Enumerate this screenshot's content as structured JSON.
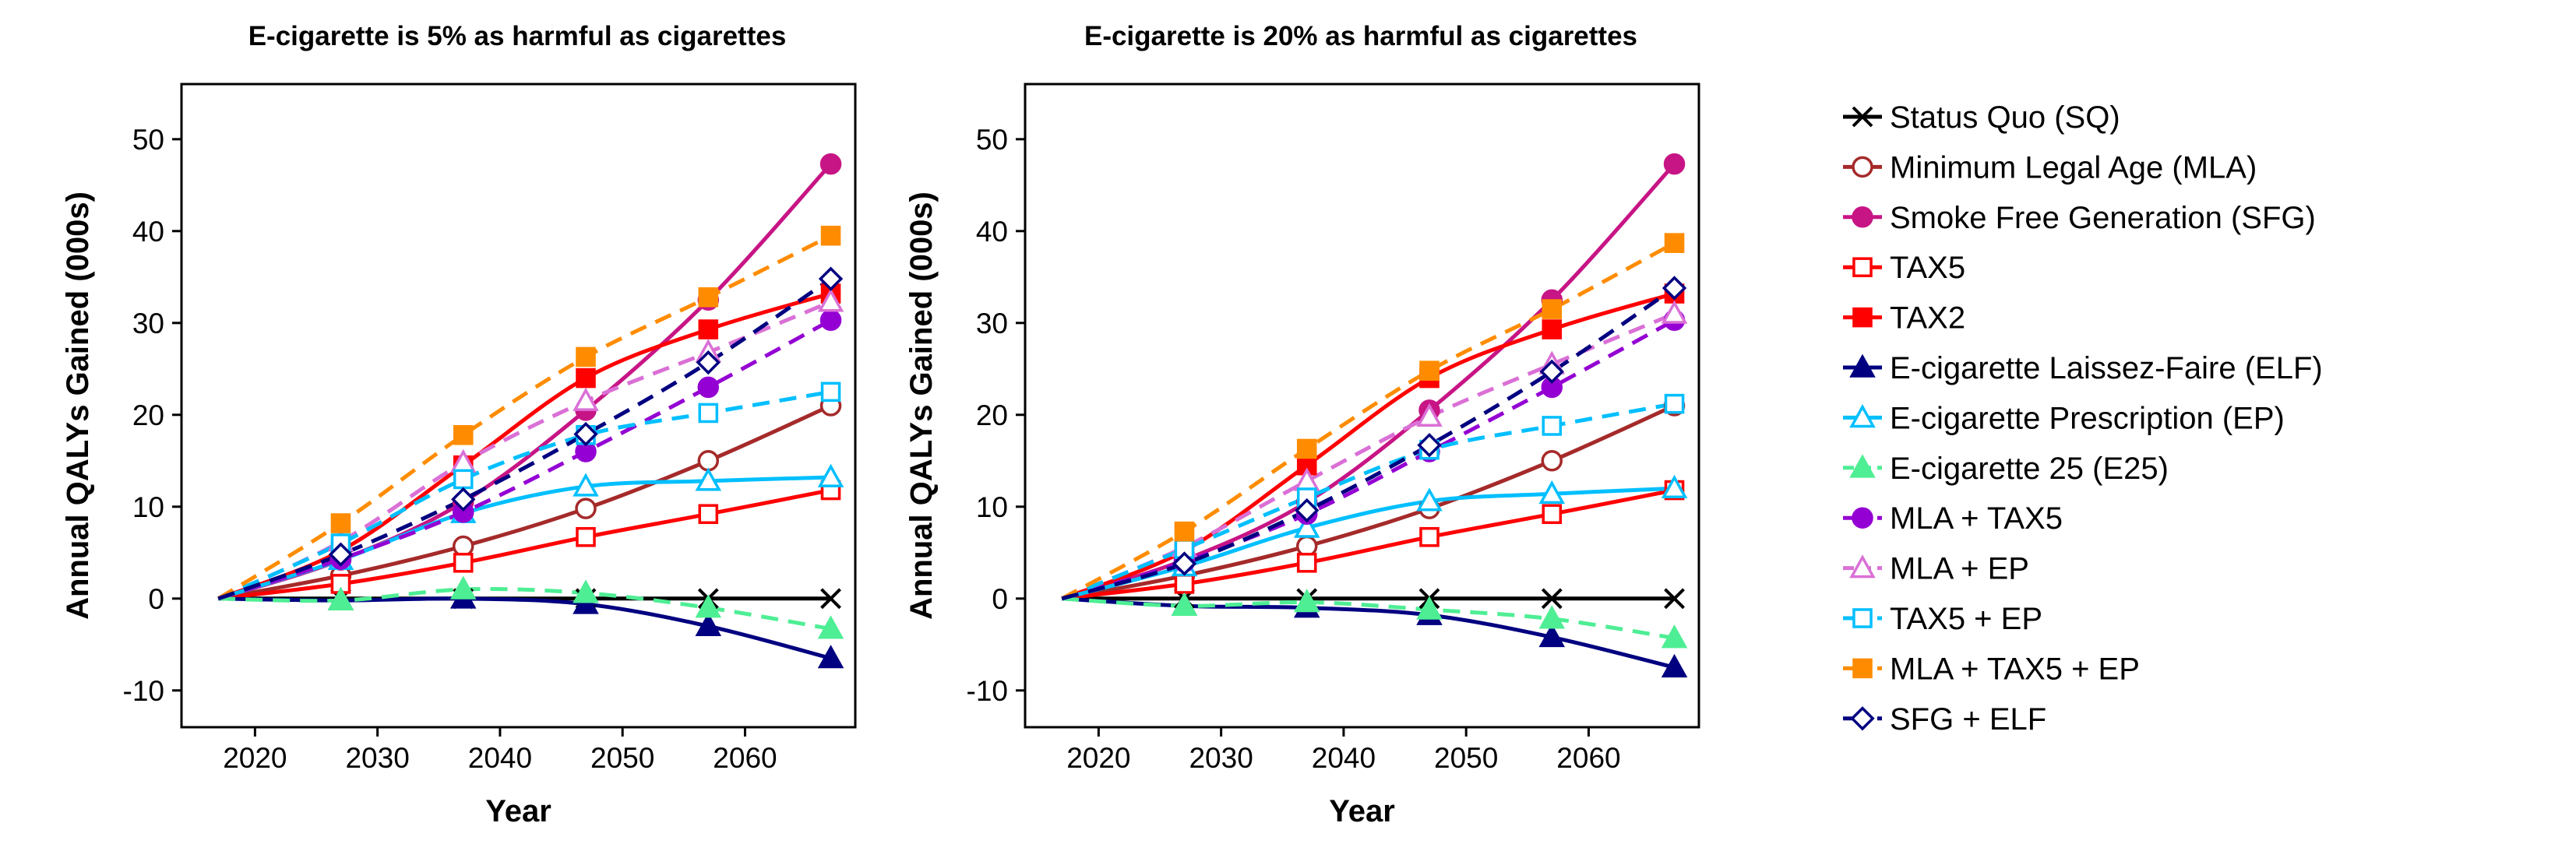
{
  "chart_data": [
    {
      "type": "line",
      "title": "E-cigarette is 5% as harmful as cigarettes",
      "xlabel": "Year",
      "ylabel": "Annual QALYs Gained (000s)",
      "xlim": [
        2014,
        2069
      ],
      "ylim": [
        -14,
        56
      ],
      "xticks": [
        2020,
        2030,
        2040,
        2050,
        2060
      ],
      "yticks": [
        -10,
        0,
        10,
        20,
        30,
        40,
        50
      ],
      "x": [
        2017,
        2027,
        2037,
        2047,
        2057,
        2067
      ],
      "series": [
        {
          "name": "Status Quo (SQ)",
          "values": [
            0,
            0,
            0,
            0,
            0,
            0
          ]
        },
        {
          "name": "Minimum Legal Age (MLA)",
          "values": [
            0,
            2.5,
            5.7,
            9.8,
            15,
            21
          ]
        },
        {
          "name": "Smoke Free Generation (SFG)",
          "values": [
            0,
            4.2,
            10.5,
            20.5,
            32.5,
            47.3
          ]
        },
        {
          "name": "TAX5",
          "values": [
            0,
            1.6,
            3.9,
            6.7,
            9.2,
            11.8
          ]
        },
        {
          "name": "TAX2",
          "values": [
            0,
            5.2,
            14.5,
            24,
            29.3,
            33.2
          ]
        },
        {
          "name": "E-cigarette Laissez-Faire (ELF)",
          "values": [
            0,
            -0.2,
            0,
            -0.6,
            -3,
            -6.5
          ]
        },
        {
          "name": "E-cigarette Prescription (EP)",
          "values": [
            0,
            4.2,
            9.3,
            12.2,
            12.8,
            13.2
          ]
        },
        {
          "name": "E-cigarette 25 (E25)",
          "values": [
            0,
            -0.2,
            1,
            0.6,
            -1,
            -3.3
          ]
        },
        {
          "name": "MLA + TAX5",
          "values": [
            0,
            4.3,
            9.4,
            16,
            23,
            30.3
          ]
        },
        {
          "name": "MLA + EP",
          "values": [
            0,
            6.2,
            14.8,
            21.5,
            26.8,
            32.3
          ]
        },
        {
          "name": "TAX5 + EP",
          "values": [
            0,
            6,
            13,
            17.8,
            20.2,
            22.5
          ]
        },
        {
          "name": "MLA + TAX5 + EP",
          "values": [
            0,
            8.2,
            17.8,
            26.3,
            32.8,
            39.5
          ]
        },
        {
          "name": "SFG + ELF",
          "values": [
            0,
            4.8,
            10.8,
            17.9,
            25.7,
            34.8
          ]
        }
      ]
    },
    {
      "type": "line",
      "title": "E-cigarette is 20% as harmful as cigarettes",
      "xlabel": "Year",
      "ylabel": "Annual QALYs Gained (000s)",
      "xlim": [
        2014,
        2069
      ],
      "ylim": [
        -14,
        56
      ],
      "xticks": [
        2020,
        2030,
        2040,
        2050,
        2060
      ],
      "yticks": [
        -10,
        0,
        10,
        20,
        30,
        40,
        50
      ],
      "x": [
        2017,
        2027,
        2037,
        2047,
        2057,
        2067
      ],
      "series": [
        {
          "name": "Status Quo (SQ)",
          "values": [
            0,
            0,
            0,
            0,
            0,
            0
          ]
        },
        {
          "name": "Minimum Legal Age (MLA)",
          "values": [
            0,
            2.5,
            5.7,
            9.8,
            15,
            21
          ]
        },
        {
          "name": "Smoke Free Generation (SFG)",
          "values": [
            0,
            4.2,
            10.5,
            20.5,
            32.5,
            47.3
          ]
        },
        {
          "name": "TAX5",
          "values": [
            0,
            1.6,
            3.9,
            6.7,
            9.2,
            11.8
          ]
        },
        {
          "name": "TAX2",
          "values": [
            0,
            5.2,
            14.5,
            24,
            29.3,
            33.2
          ]
        },
        {
          "name": "E-cigarette Laissez-Faire (ELF)",
          "values": [
            0,
            -0.8,
            -1,
            -1.8,
            -4.2,
            -7.5
          ]
        },
        {
          "name": "E-cigarette Prescription (EP)",
          "values": [
            0,
            3.5,
            7.7,
            10.6,
            11.4,
            12
          ]
        },
        {
          "name": "E-cigarette 25 (E25)",
          "values": [
            0,
            -0.8,
            -0.4,
            -1.2,
            -2.2,
            -4.3
          ]
        },
        {
          "name": "MLA + TAX5",
          "values": [
            0,
            4,
            9.2,
            16,
            23,
            30.3
          ]
        },
        {
          "name": "MLA + EP",
          "values": [
            0,
            5.6,
            12.8,
            19.8,
            25.5,
            31
          ]
        },
        {
          "name": "TAX5 + EP",
          "values": [
            0,
            5.4,
            11,
            16.2,
            18.8,
            21.2
          ]
        },
        {
          "name": "MLA + TAX5 + EP",
          "values": [
            0,
            7.3,
            16.3,
            24.8,
            31.5,
            38.7
          ]
        },
        {
          "name": "SFG + ELF",
          "values": [
            0,
            3.8,
            9.6,
            16.7,
            24.7,
            33.8
          ]
        }
      ]
    }
  ],
  "series_styles": [
    {
      "color": "#000000",
      "dash": false,
      "marker": "x"
    },
    {
      "color": "#A52A2A",
      "dash": false,
      "marker": "circle-open"
    },
    {
      "color": "#C71585",
      "dash": false,
      "marker": "circle-filled"
    },
    {
      "color": "#FF0000",
      "dash": false,
      "marker": "square-open"
    },
    {
      "color": "#FF0000",
      "dash": false,
      "marker": "square-filled"
    },
    {
      "color": "#000080",
      "dash": false,
      "marker": "triangle-filled"
    },
    {
      "color": "#00BFFF",
      "dash": false,
      "marker": "triangle-open"
    },
    {
      "color": "#4EEE94",
      "dash": true,
      "marker": "triangle-filled"
    },
    {
      "color": "#9400D3",
      "dash": true,
      "marker": "circle-filled"
    },
    {
      "color": "#DA70D6",
      "dash": true,
      "marker": "triangle-open"
    },
    {
      "color": "#00BFFF",
      "dash": true,
      "marker": "square-open"
    },
    {
      "color": "#FF8C00",
      "dash": true,
      "marker": "square-filled"
    },
    {
      "color": "#000080",
      "dash": true,
      "marker": "diamond-open"
    }
  ],
  "legend": {
    "placement": "right",
    "items": [
      "Status Quo (SQ)",
      "Minimum Legal Age (MLA)",
      "Smoke Free Generation (SFG)",
      "TAX5",
      "TAX2",
      "E-cigarette Laissez-Faire (ELF)",
      "E-cigarette Prescription (EP)",
      "E-cigarette 25 (E25)",
      "MLA + TAX5",
      "MLA + EP",
      "TAX5 + EP",
      "MLA + TAX5 + EP",
      "SFG + ELF"
    ]
  }
}
